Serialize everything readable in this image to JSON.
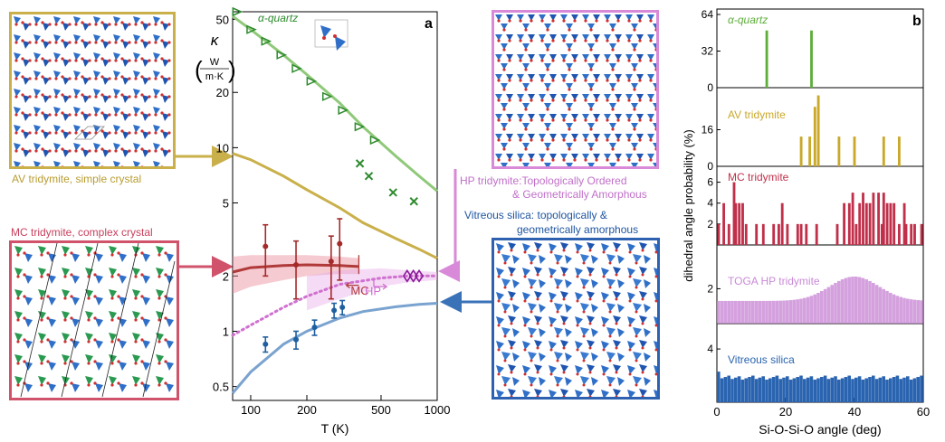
{
  "panels": {
    "av": {
      "label": "AV tridymite, simple crystal",
      "color": "#c9b04a"
    },
    "mc": {
      "label": "MC tridymite, complex crystal",
      "color": "#d0536b"
    },
    "hp": {
      "label_line1": "HP tridymite:Topologically Ordered",
      "label_line2": "& Geometrically Amorphous",
      "color": "#d88ad8"
    },
    "vs": {
      "label_line1": "Vitreous silica: topologically &",
      "label_line2": "geometrically amorphous",
      "color": "#2e62b0"
    }
  },
  "chart_data": [
    {
      "panel": "a",
      "type": "scatter",
      "xscale": "log",
      "yscale": "log",
      "xlabel": "T (K)",
      "ylabel_symbol": "κ",
      "ylabel_unit_top": "W",
      "ylabel_unit_bottom": "m·K",
      "xlim": [
        80,
        1000
      ],
      "ylim": [
        0.42,
        55
      ],
      "xticks": [
        100,
        200,
        500,
        1000
      ],
      "yticks": [
        0.5,
        1,
        2,
        5,
        10,
        20,
        50
      ],
      "annotations": [
        "MC",
        "HP"
      ],
      "inset_label": "α-quartz",
      "series": [
        {
          "name": "α-quartz",
          "kind": "triangle",
          "color": "#2e8b2e",
          "x": [
            84,
            100,
            120,
            145,
            175,
            210,
            255,
            310,
            380,
            460
          ],
          "y": [
            55,
            44,
            38,
            32,
            27,
            23,
            19,
            16,
            13,
            11
          ]
        },
        {
          "kind": "cross",
          "color": "#2e8b2e",
          "x": [
            385,
            430,
            580,
            750
          ],
          "y": [
            8.2,
            7.0,
            5.7,
            5.1
          ]
        },
        {
          "kind": "curve",
          "color": "#8fc979",
          "x": [
            80,
            100,
            150,
            200,
            300,
            400,
            600,
            800,
            1000
          ],
          "y": [
            52,
            44,
            32,
            25,
            17.5,
            13,
            9,
            7,
            5.8
          ]
        },
        {
          "kind": "curve",
          "color": "#c9b04a",
          "x": [
            80,
            100,
            150,
            200,
            300,
            400,
            600,
            800,
            1000
          ],
          "y": [
            9.3,
            8.6,
            7.0,
            5.9,
            4.7,
            3.9,
            3.2,
            2.8,
            2.5
          ]
        },
        {
          "name": "MC tridymite",
          "kind": "errorbar",
          "color": "#a52a2a",
          "x": [
            120,
            175,
            270,
            300
          ],
          "y": [
            2.9,
            2.3,
            2.4,
            3.0
          ],
          "err": [
            0.9,
            0.8,
            0.9,
            1.1
          ]
        },
        {
          "kind": "curve",
          "color": "#b03a3a",
          "x": [
            80,
            100,
            150,
            200,
            300,
            380
          ],
          "y": [
            2.1,
            2.22,
            2.28,
            2.3,
            2.28,
            2.25
          ]
        },
        {
          "kind": "band",
          "color": "#e88a9a",
          "x": [
            80,
            100,
            150,
            200,
            300,
            380
          ],
          "ylow": [
            1.6,
            1.75,
            1.9,
            2.0,
            2.05,
            2.05
          ],
          "yhigh": [
            2.55,
            2.6,
            2.6,
            2.6,
            2.55,
            2.5
          ]
        },
        {
          "kind": "dotted",
          "color": "#d070d0",
          "x": [
            80,
            100,
            150,
            200,
            300,
            500,
            700,
            1000
          ],
          "y": [
            0.95,
            1.08,
            1.35,
            1.55,
            1.8,
            1.95,
            2.0,
            2.0
          ]
        },
        {
          "kind": "band",
          "color": "#e8b0e8",
          "x": [
            200,
            300,
            500,
            700,
            1000
          ],
          "ylow": [
            1.3,
            1.5,
            1.75,
            1.85,
            1.9
          ],
          "yhigh": [
            2.0,
            2.15,
            2.2,
            2.15,
            2.1
          ]
        },
        {
          "name": "HP tridymite",
          "kind": "diamond",
          "color": "#8a1a9a",
          "x": [
            690,
            745,
            800
          ],
          "y": [
            2.0,
            2.0,
            2.0
          ]
        },
        {
          "name": "Vitreous silica",
          "kind": "errorbar",
          "color": "#1f5fa0",
          "x": [
            120,
            175,
            220,
            280,
            310
          ],
          "y": [
            0.85,
            0.9,
            1.05,
            1.3,
            1.35
          ],
          "err": [
            0.08,
            0.1,
            0.1,
            0.12,
            0.12
          ]
        },
        {
          "kind": "curve",
          "color": "#7aa3cf",
          "x": [
            80,
            100,
            150,
            200,
            300,
            400,
            600,
            800,
            1000
          ],
          "y": [
            0.46,
            0.6,
            0.85,
            1.0,
            1.18,
            1.28,
            1.36,
            1.4,
            1.42
          ]
        }
      ]
    },
    {
      "panel": "b",
      "type": "bar",
      "xlabel": "Si-O-Si-O angle (deg)",
      "ylabel": "dihedral angle probability (%)",
      "xlim": [
        0,
        60
      ],
      "xticks": [
        0,
        20,
        40,
        60
      ],
      "rows": [
        {
          "name": "α-quartz",
          "color": "#5fae3c",
          "ymax": 64,
          "yticks": [
            0,
            32,
            64
          ],
          "x": [
            14.5,
            27.5
          ],
          "values": [
            50,
            50
          ]
        },
        {
          "name": "AV tridymite",
          "color": "#c9a82a",
          "ymax": 32,
          "yticks": [
            0,
            16
          ],
          "x": [
            24.5,
            27,
            28.5,
            29.5,
            35.5,
            40,
            48.5,
            53
          ],
          "values": [
            13,
            13,
            26,
            31,
            13,
            13,
            13,
            13
          ]
        },
        {
          "name": "MC tridymite",
          "color": "#c0304a",
          "ymax": 7,
          "yticks": [
            2,
            4,
            6
          ],
          "x": [
            0.5,
            2,
            3.5,
            5,
            5.5,
            6.5,
            7.5,
            8.5,
            11.5,
            13.5,
            16.5,
            18,
            19,
            20.5,
            23.5,
            24.5,
            26,
            29,
            35,
            37,
            38.5,
            39.5,
            40.5,
            41.5,
            42.5,
            43.5,
            44.5,
            45.5,
            47,
            48,
            48.5,
            49.5,
            50.5,
            51.5,
            53,
            54.5,
            55,
            56.5,
            57.5,
            59.5
          ],
          "values": [
            2,
            4,
            2,
            6,
            4,
            4,
            4,
            2,
            2,
            2,
            2,
            2,
            4,
            2,
            2,
            2,
            2,
            2,
            2,
            4,
            4,
            5,
            2,
            4,
            5,
            4,
            4,
            5,
            5,
            2,
            5,
            4,
            4,
            4,
            2,
            4,
            2,
            2,
            2,
            2
          ]
        }
      ]
    }
  ],
  "panel_b_extra_rows": [
    {
      "name": "TOGA HP tridymite",
      "color": "#c98ad6",
      "ytick": "2"
    },
    {
      "name": "Vitreous silica",
      "color": "#2a64b0",
      "ytick": "4"
    }
  ],
  "panel_letters": {
    "a": "a",
    "b": "b"
  }
}
